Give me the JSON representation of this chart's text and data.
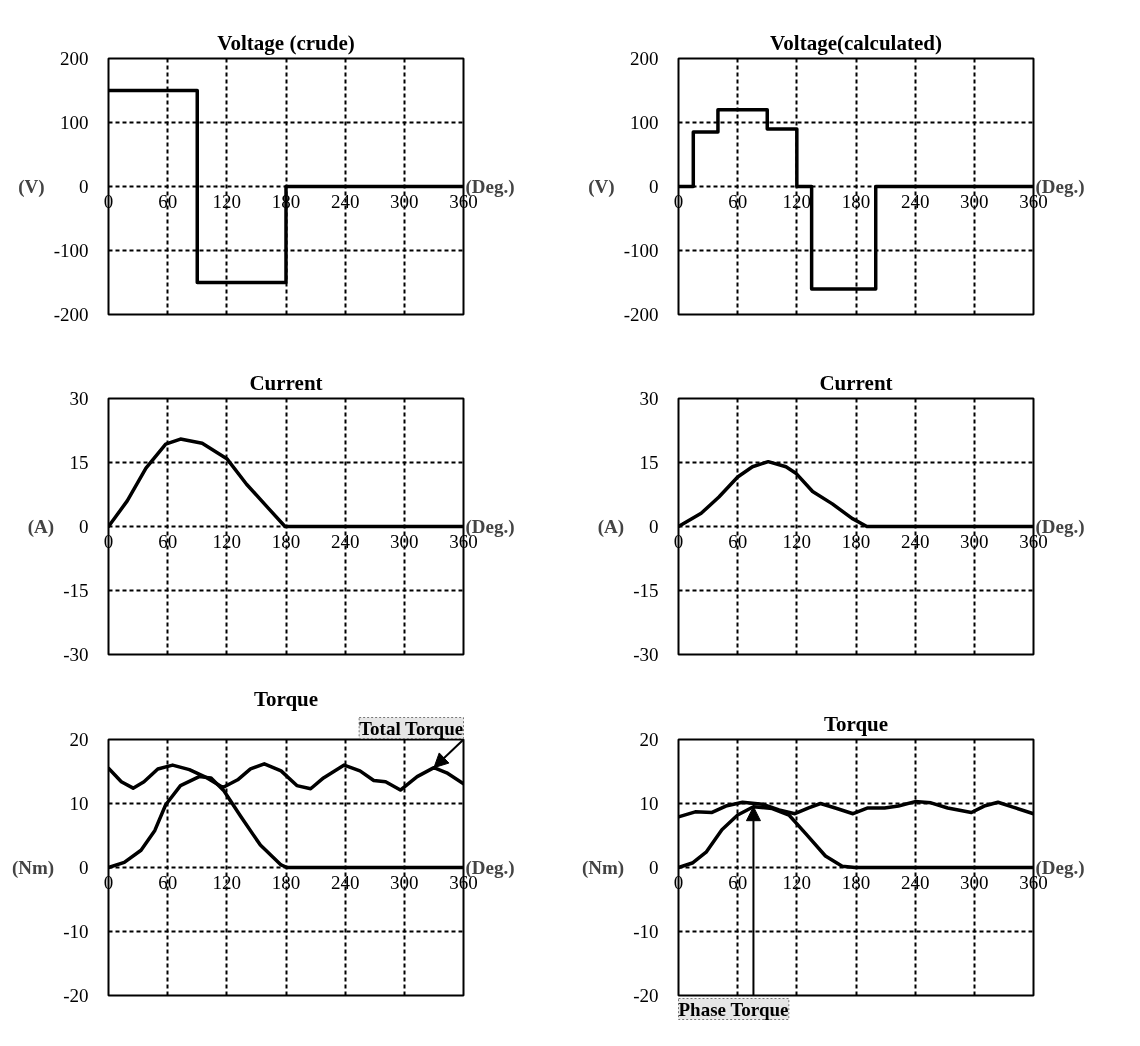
{
  "chart_data": [
    {
      "type": "step",
      "title": "Voltage (crude)",
      "xlabel": "(Deg.)",
      "ylabel": "(V)",
      "xlim": [
        0,
        360
      ],
      "ylim": [
        -200,
        200
      ],
      "xticks": [
        0,
        60,
        120,
        180,
        240,
        300,
        360
      ],
      "yticks": [
        -200,
        -100,
        0,
        100,
        200
      ],
      "grid": true,
      "series": [
        {
          "color": "#000000",
          "x": [
            0,
            90,
            180,
            360
          ],
          "values": [
            150,
            -150,
            0,
            0
          ]
        }
      ]
    },
    {
      "type": "step",
      "title": "Voltage(calculated)",
      "xlabel": "(Deg.)",
      "ylabel": "(V)",
      "xlim": [
        0,
        360
      ],
      "ylim": [
        -200,
        200
      ],
      "xticks": [
        0,
        60,
        120,
        180,
        240,
        300,
        360
      ],
      "yticks": [
        -200,
        -100,
        0,
        100,
        200
      ],
      "grid": true,
      "series": [
        {
          "color": "#000000",
          "x": [
            0,
            15,
            40,
            90,
            120,
            135,
            200,
            360
          ],
          "values": [
            0,
            85,
            120,
            90,
            0,
            -160,
            0,
            0
          ]
        }
      ]
    },
    {
      "type": "line",
      "title": "Current",
      "xlabel": "(Deg.)",
      "ylabel": "(A)",
      "xlim": [
        0,
        360
      ],
      "ylim": [
        -30,
        30
      ],
      "xticks": [
        0,
        60,
        120,
        180,
        240,
        300,
        360
      ],
      "yticks": [
        -30,
        -15,
        0,
        15,
        30
      ],
      "grid": true,
      "series": [
        {
          "color": "#000000",
          "x": [
            0,
            19,
            38,
            58,
            73,
            95,
            120,
            140,
            162,
            179,
            360
          ],
          "values": [
            0,
            6,
            13.7,
            19.3,
            20.5,
            19.5,
            15.9,
            9.9,
            4.3,
            0,
            0
          ]
        }
      ]
    },
    {
      "type": "line",
      "title": "Current",
      "xlabel": "(Deg.)",
      "ylabel": "(A)",
      "xlim": [
        0,
        360
      ],
      "ylim": [
        -30,
        30
      ],
      "xticks": [
        0,
        60,
        120,
        180,
        240,
        300,
        360
      ],
      "yticks": [
        -30,
        -15,
        0,
        15,
        30
      ],
      "grid": true,
      "series": [
        {
          "color": "#000000",
          "x": [
            0,
            23,
            41,
            60,
            75,
            91,
            109,
            119,
            136,
            156,
            176,
            191,
            360
          ],
          "values": [
            0,
            3.1,
            6.9,
            11.6,
            14,
            15.2,
            14,
            12.5,
            8.2,
            5.3,
            1.9,
            0,
            0
          ]
        }
      ]
    },
    {
      "type": "line",
      "title": "Torque",
      "xlabel": "(Deg.)",
      "ylabel": "(Nm)",
      "xlim": [
        0,
        360
      ],
      "ylim": [
        -20,
        20
      ],
      "xticks": [
        0,
        60,
        120,
        180,
        240,
        300,
        360
      ],
      "yticks": [
        -20,
        -10,
        0,
        10,
        20
      ],
      "grid": true,
      "annotations": [
        {
          "text": "Total Torque",
          "x": 330,
          "y": 15.6
        }
      ],
      "series": [
        {
          "color": "#000000",
          "x": [
            0,
            13,
            25,
            36,
            50,
            65,
            82,
            100,
            116,
            131,
            144,
            158,
            175,
            191,
            205,
            218,
            239,
            255,
            269,
            281,
            296,
            313,
            330,
            343,
            360
          ],
          "values": [
            15.5,
            13.4,
            12.4,
            13.4,
            15.4,
            16,
            15.3,
            14,
            12.5,
            13.7,
            15.4,
            16.2,
            15.1,
            12.8,
            12.3,
            14,
            16,
            15.1,
            13.6,
            13.4,
            12.1,
            14.2,
            15.6,
            14.8,
            13.1
          ]
        },
        {
          "color": "#000000",
          "x": [
            0,
            16,
            33,
            47,
            58,
            73,
            92,
            104,
            117,
            134,
            154,
            175,
            181,
            360
          ],
          "values": [
            0,
            0.8,
            2.7,
            5.8,
            9.8,
            12.8,
            14.2,
            14,
            12,
            8,
            3.5,
            0.4,
            0,
            0
          ]
        }
      ]
    },
    {
      "type": "line",
      "title": "Torque",
      "xlabel": "(Deg.)",
      "ylabel": "(Nm)",
      "xlim": [
        0,
        360
      ],
      "ylim": [
        -20,
        20
      ],
      "xticks": [
        0,
        60,
        120,
        180,
        240,
        300,
        360
      ],
      "yticks": [
        -20,
        -10,
        0,
        10,
        20
      ],
      "grid": true,
      "annotations": [
        {
          "text": "Phase Torque",
          "x": 76,
          "y": 9.5
        }
      ],
      "series": [
        {
          "color": "#000000",
          "x": [
            0,
            17,
            34,
            48,
            65,
            85,
            102,
            118,
            132,
            144,
            159,
            177,
            192,
            209,
            223,
            240,
            256,
            273,
            297,
            310,
            324,
            340,
            360
          ],
          "values": [
            7.9,
            8.7,
            8.6,
            9.6,
            10.2,
            9.9,
            9,
            8.4,
            9.3,
            10,
            9.3,
            8.4,
            9.3,
            9.3,
            9.6,
            10.3,
            10.1,
            9.3,
            8.6,
            9.6,
            10.2,
            9.4,
            8.4
          ]
        },
        {
          "color": "#000000",
          "x": [
            0,
            14,
            28,
            44,
            60,
            76,
            95,
            112,
            129,
            149,
            166,
            179,
            360
          ],
          "values": [
            0,
            0.7,
            2.4,
            5.9,
            8.2,
            9.5,
            9.2,
            8.2,
            5.3,
            1.8,
            0.2,
            0,
            0
          ]
        }
      ]
    }
  ]
}
